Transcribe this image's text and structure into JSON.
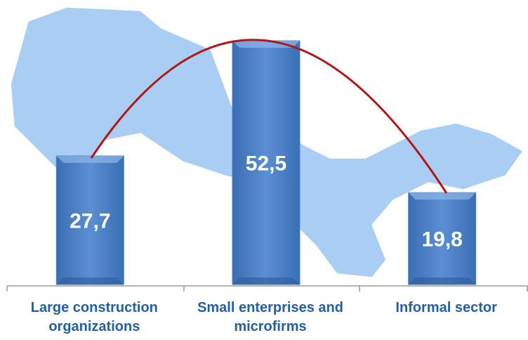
{
  "chart_data": {
    "type": "bar",
    "categories": [
      "Large construction organizations",
      "Small enterprises and microfirms",
      "Informal sector"
    ],
    "values": [
      27.7,
      52.5,
      19.8
    ],
    "value_labels": [
      "27,7",
      "52,5",
      "19,8"
    ],
    "color": "#4f81bd",
    "ylim": [
      0,
      55
    ]
  }
}
